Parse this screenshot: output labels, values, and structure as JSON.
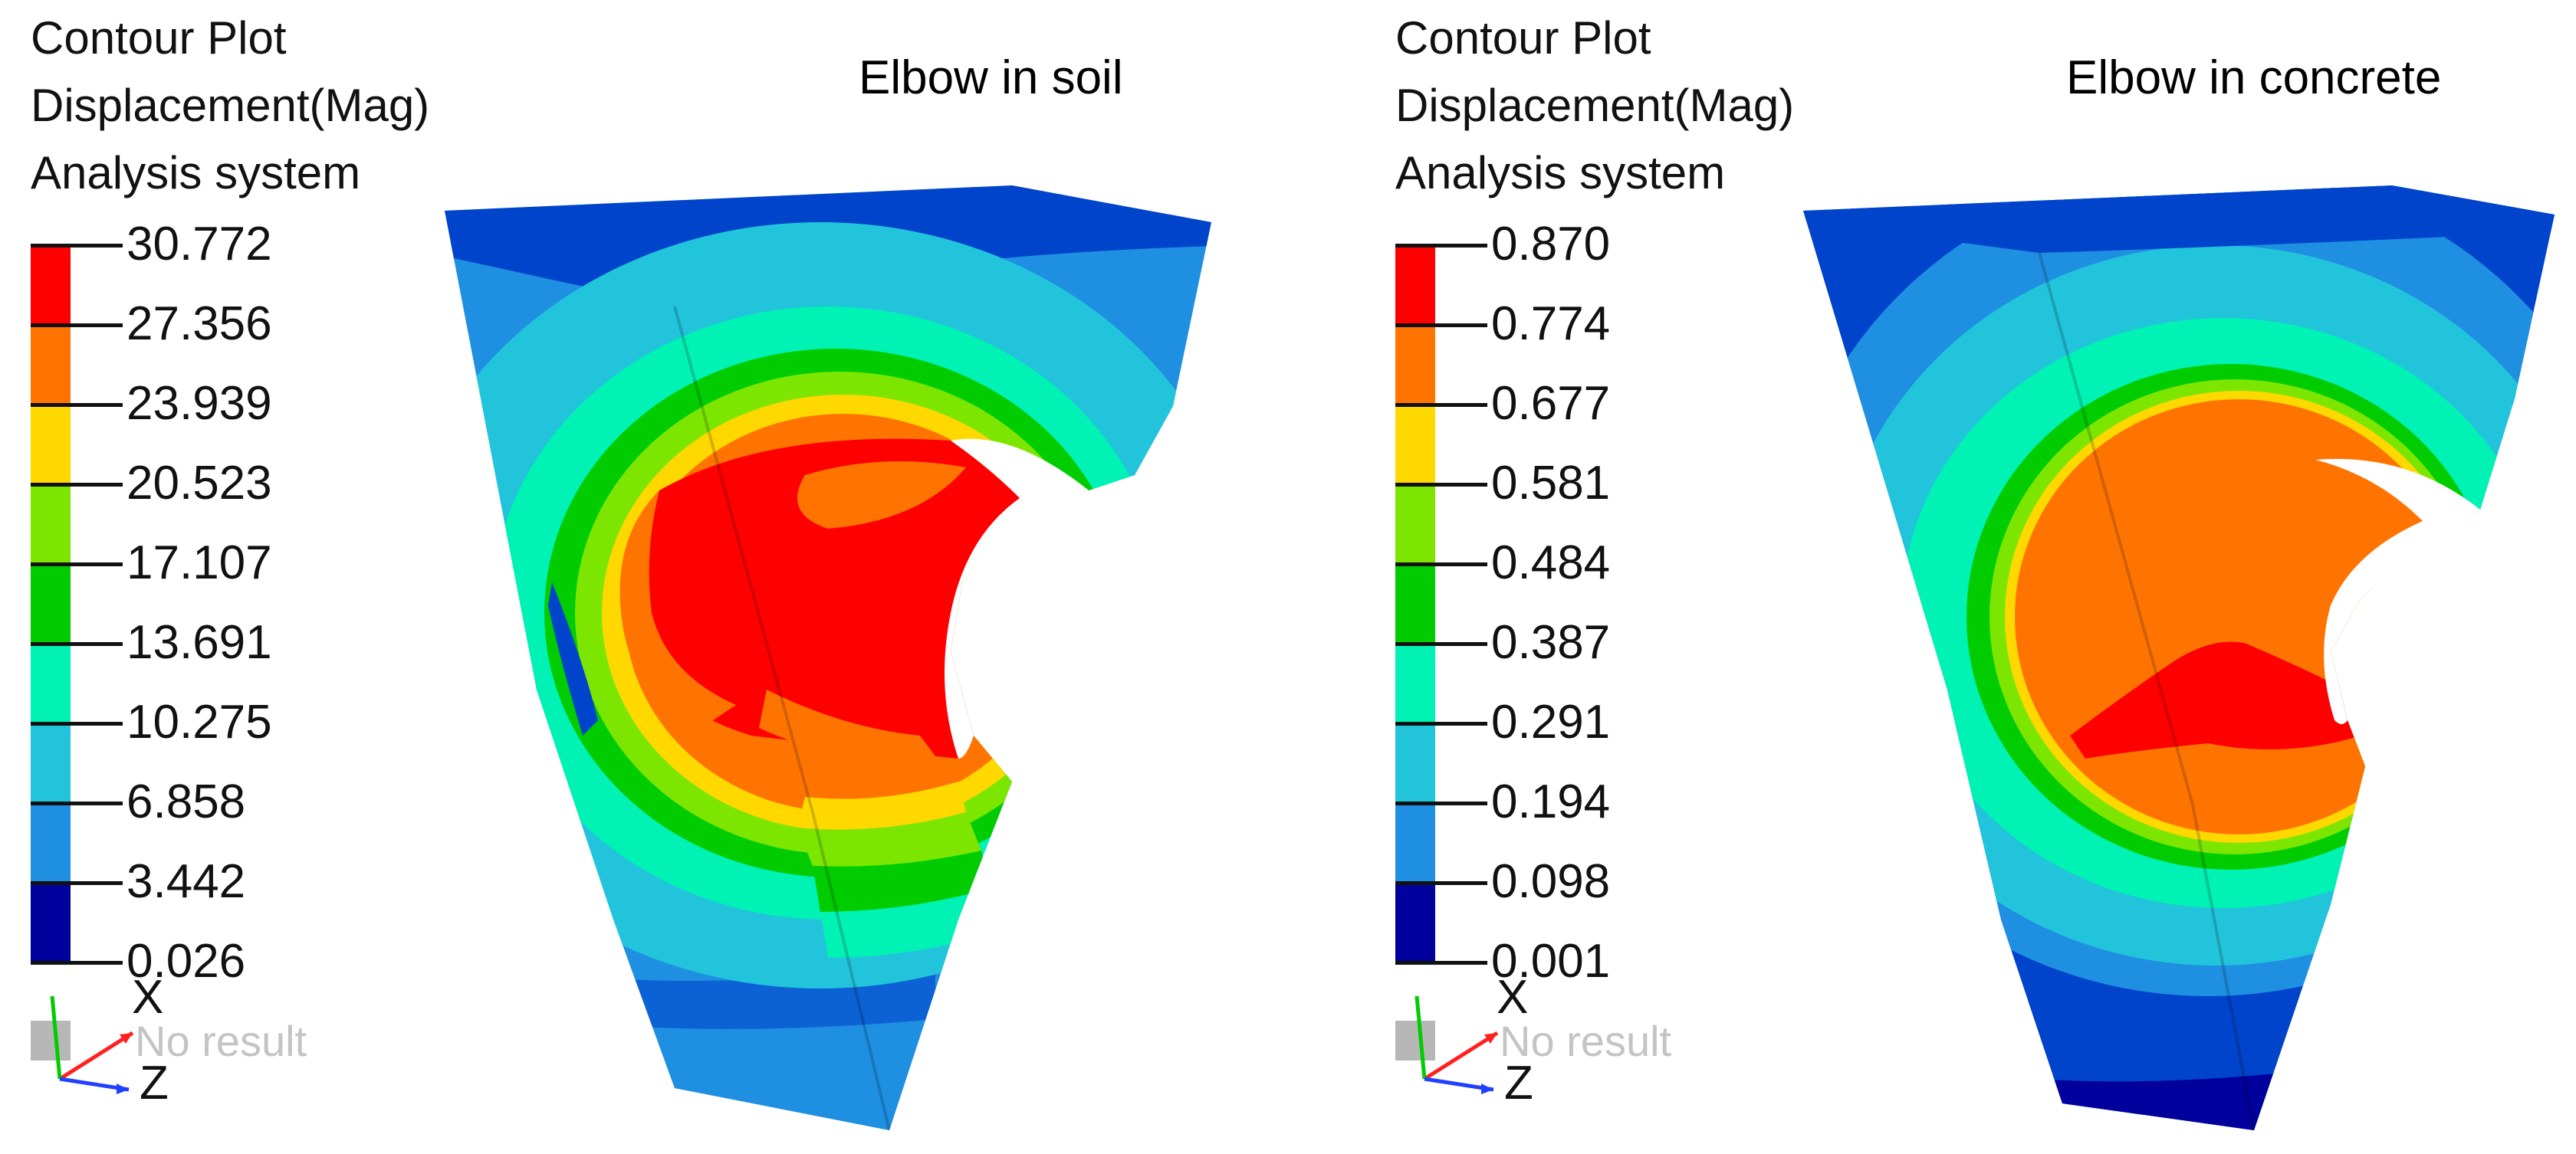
{
  "panels": [
    {
      "header": [
        "Contour Plot",
        "Displacement(Mag)",
        "Analysis system"
      ],
      "title": "Elbow in soil",
      "legend_values": [
        "30.772",
        "27.356",
        "23.939",
        "20.523",
        "17.107",
        "13.691",
        "10.275",
        "6.858",
        "3.442",
        "0.026"
      ],
      "no_result_label": "No result",
      "axis_labels": {
        "x": "X",
        "z": "Z"
      }
    },
    {
      "header": [
        "Contour Plot",
        "Displacement(Mag)",
        "Analysis system"
      ],
      "title": "Elbow in concrete",
      "legend_values": [
        "0.870",
        "0.774",
        "0.677",
        "0.581",
        "0.484",
        "0.387",
        "0.291",
        "0.194",
        "0.098",
        "0.001"
      ],
      "no_result_label": "No result",
      "axis_labels": {
        "x": "X",
        "z": "Z"
      }
    }
  ],
  "colors": {
    "band_top_to_bottom": [
      "#ff0000",
      "#ff7400",
      "#ffd800",
      "#7ce600",
      "#00cc00",
      "#00f2b4",
      "#22c4dc",
      "#1f8fe2",
      "#0044cc",
      "#00009c"
    ],
    "tick": "#111111",
    "no_result": "#b7b7b7",
    "triad_x": "#ff2020",
    "triad_y": "#00cc00",
    "triad_z": "#2040ff"
  }
}
